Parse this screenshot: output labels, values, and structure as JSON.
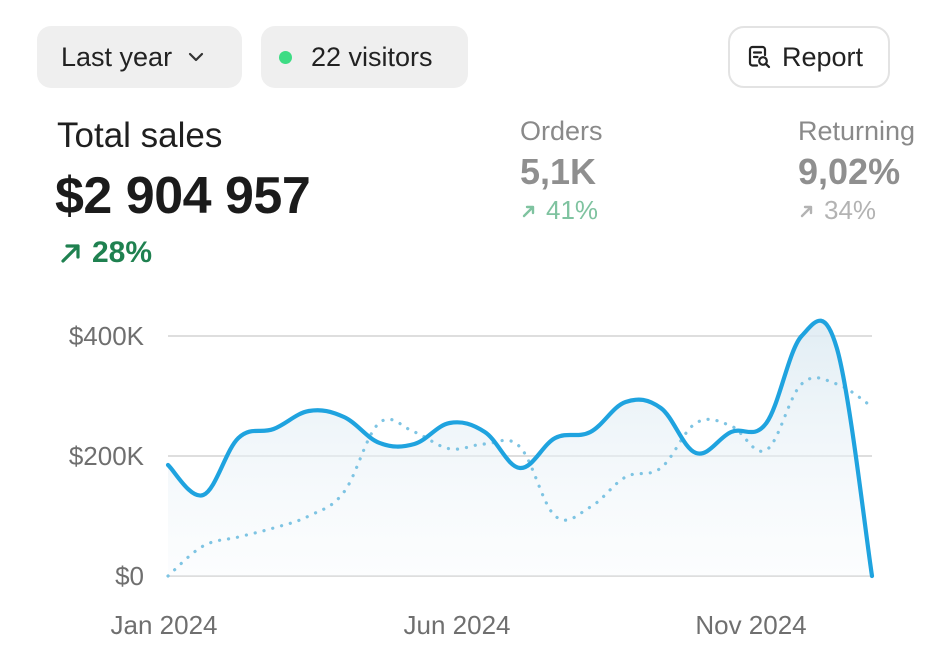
{
  "toolbar": {
    "period_label": "Last year",
    "visitors_label": "22 visitors",
    "report_label": "Report"
  },
  "summary": {
    "title": "Total sales",
    "value": "$2 904 957",
    "change": "28%"
  },
  "metrics": {
    "orders": {
      "label": "Orders",
      "value": "5,1K",
      "change": "41%"
    },
    "returning": {
      "label": "Returning",
      "value": "9,02%",
      "change": "34%"
    }
  },
  "colors": {
    "primary_line": "#1fa3df",
    "comparison_line": "#7ec4e3",
    "positive": "#1f8150",
    "orders_change": "#7fc3a0",
    "returning_change": "#b3b3b3",
    "live_dot": "#3ddc84"
  },
  "chart_data": {
    "type": "line",
    "x_tick_labels": [
      "Jan 2024",
      "Jun 2024",
      "Nov 2024"
    ],
    "y_tick_labels": [
      "$0",
      "$200K",
      "$400K"
    ],
    "ylim": [
      0,
      400000
    ],
    "grid": true,
    "series": [
      {
        "style": "solid",
        "values": [
          185000,
          135000,
          230000,
          245000,
          275000,
          265000,
          222000,
          220000,
          255000,
          240000,
          180000,
          230000,
          240000,
          290000,
          280000,
          205000,
          240000,
          255000,
          400000,
          380000,
          0
        ]
      },
      {
        "style": "dotted",
        "values": [
          0,
          50000,
          65000,
          80000,
          100000,
          140000,
          255000,
          240000,
          212000,
          220000,
          215000,
          100000,
          115000,
          165000,
          180000,
          255000,
          250000,
          210000,
          320000,
          320000,
          282000
        ]
      }
    ]
  }
}
